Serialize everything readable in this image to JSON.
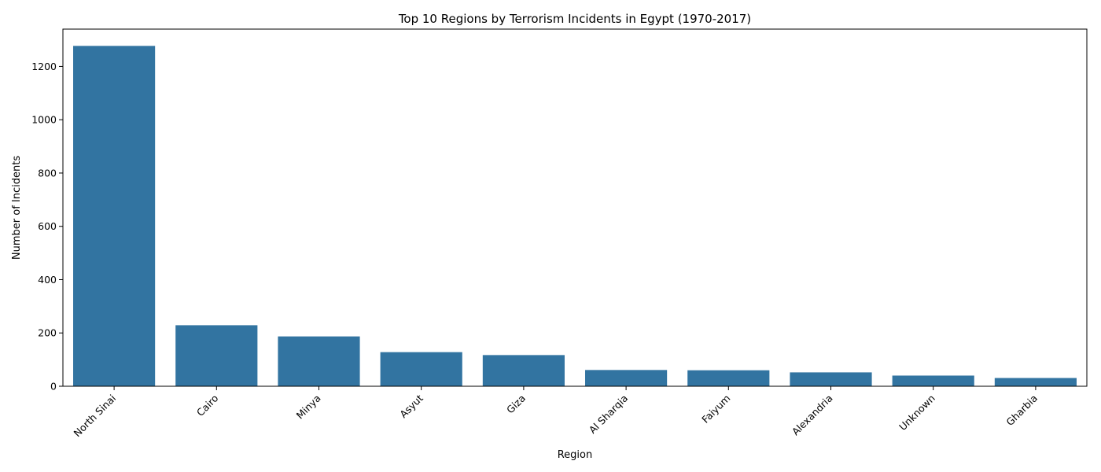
{
  "chart_data": {
    "type": "bar",
    "title": "Top 10 Regions by Terrorism Incidents in Egypt (1970-2017)",
    "xlabel": "Region",
    "ylabel": "Number of Incidents",
    "categories": [
      "North Sinai",
      "Cairo",
      "Minya",
      "Asyut",
      "Giza",
      "Al Sharqia",
      "Faiyum",
      "Alexandria",
      "Unknown",
      "Gharbia"
    ],
    "values": [
      1277,
      229,
      187,
      128,
      117,
      61,
      60,
      52,
      40,
      31
    ],
    "ylim": [
      0,
      1340
    ],
    "yticks": [
      0,
      200,
      400,
      600,
      800,
      1000,
      1200
    ],
    "bar_color": "#3274a1",
    "grid": false,
    "legend": "none"
  }
}
